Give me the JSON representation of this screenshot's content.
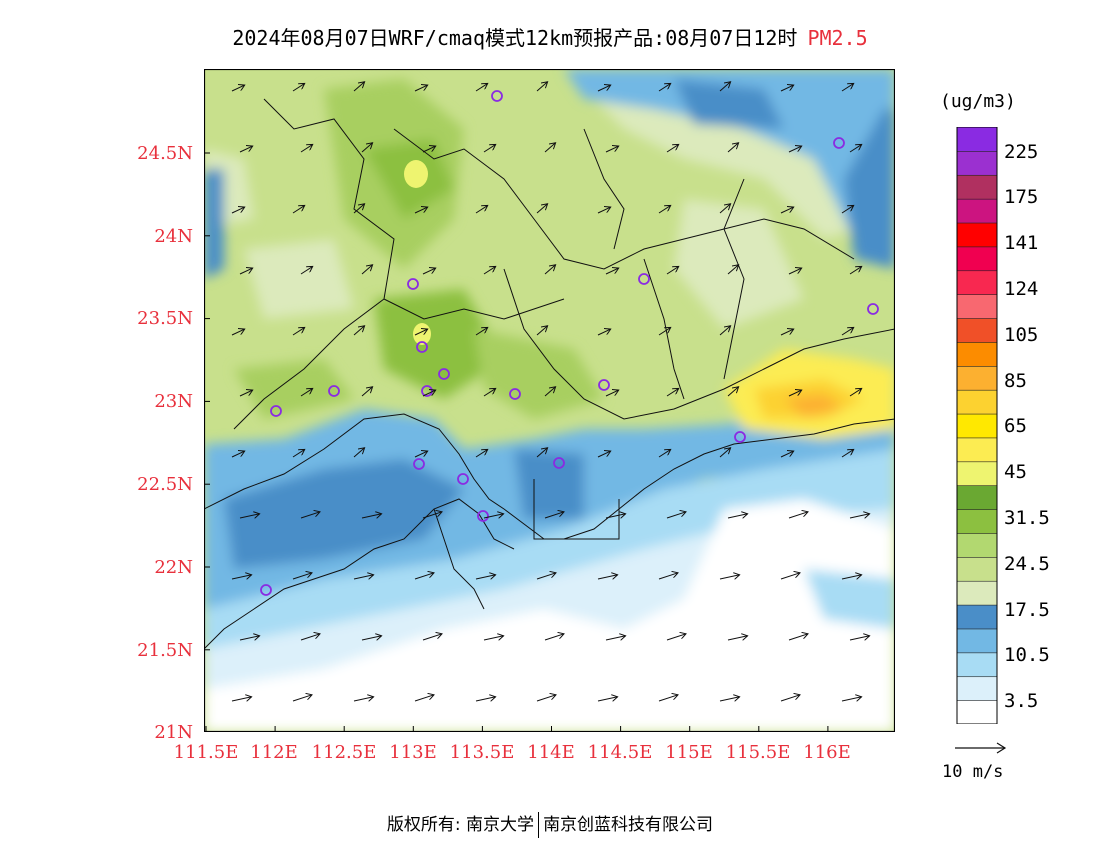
{
  "title": {
    "text": "2024年08月07日WRF/cmaq模式12km预报产品:08月07日12时",
    "pollutant": "PM2.5"
  },
  "map": {
    "lat_labels": [
      "24.5N",
      "24N",
      "23.5N",
      "23N",
      "22.5N",
      "22N",
      "21.5N",
      "21N"
    ],
    "lon_labels": [
      "111.5E",
      "112E",
      "112.5E",
      "113E",
      "113.5E",
      "114E",
      "114.5E",
      "115E",
      "115.5E",
      "116E"
    ],
    "station_marker_color": "#8a2be2"
  },
  "colorbar": {
    "unit": "(ug/m3)",
    "colors": [
      "#ffffff",
      "#dcf0fa",
      "#a8dcf4",
      "#72b8e4",
      "#4a8ec8",
      "#dceabc",
      "#c8e08c",
      "#b2d870",
      "#8cc040",
      "#6aa832",
      "#eef470",
      "#fcec52",
      "#ffe800",
      "#fcd230",
      "#fcb030",
      "#fc8c00",
      "#f05028",
      "#f86870",
      "#f82850",
      "#f00050",
      "#ff0000",
      "#cc1480",
      "#b03060",
      "#9b30d0",
      "#8a2be2"
    ],
    "labels": [
      "3.5",
      "10.5",
      "17.5",
      "24.5",
      "31.5",
      "45",
      "65",
      "85",
      "105",
      "124",
      "141",
      "175",
      "225"
    ]
  },
  "wind_reference": "10 m/s",
  "footer": {
    "left": "版权所有: 南京大学",
    "right": "南京创蓝科技有限公司"
  }
}
